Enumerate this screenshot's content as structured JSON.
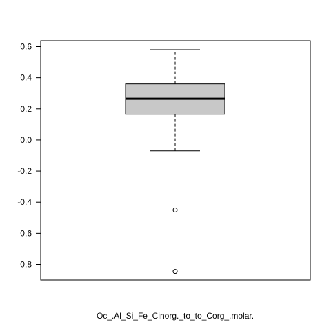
{
  "chart_data": {
    "type": "boxplot",
    "title": "",
    "xlabel": "Oc_.Al_Si_Fe_Cinorg._to_to_Corg_.molar.",
    "ylabel": "",
    "ylim": [
      -0.9,
      0.63
    ],
    "yticks": [
      0.6,
      0.4,
      0.2,
      0.0,
      -0.2,
      -0.4,
      -0.6,
      -0.8
    ],
    "ytick_labels": [
      "0.6",
      "0.4",
      "0.2",
      "0.0",
      "-0.2",
      "-0.4",
      "-0.6",
      "-0.8"
    ],
    "grid": false,
    "box": {
      "whisker_low": -0.07,
      "q1": 0.165,
      "median": 0.265,
      "q3": 0.36,
      "whisker_high": 0.58,
      "outliers": [
        -0.45,
        -0.845
      ]
    },
    "colors": {
      "box_fill": "#c8c8c8",
      "stroke": "#000000"
    }
  }
}
